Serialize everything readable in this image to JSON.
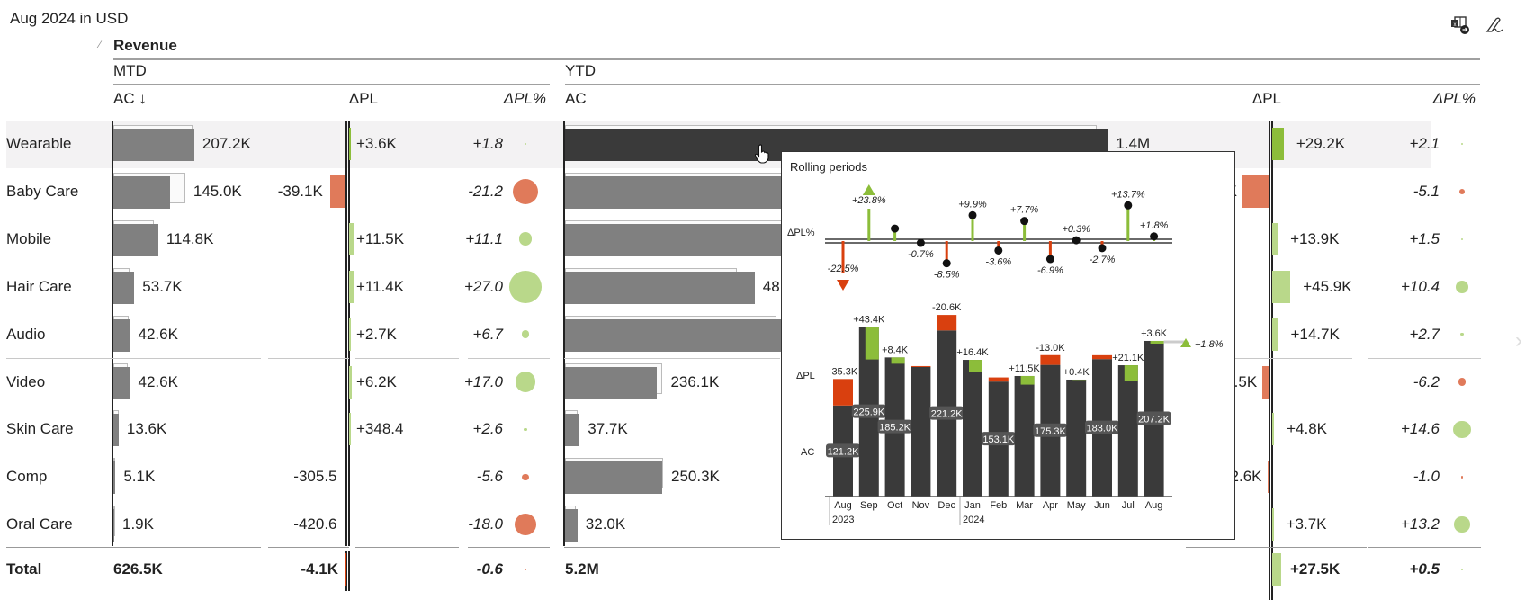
{
  "header": {
    "title": "Aug 2024 in USD",
    "measure": "Revenue",
    "mtd_label": "MTD",
    "ytd_label": "YTD",
    "col_ac_mtd": "AC ↓",
    "col_ac_ytd": "AC",
    "col_dpl": "ΔPL",
    "col_dplpct": "ΔPL%"
  },
  "toolbar": {
    "icons": [
      "export-excel-icon",
      "signature-icon"
    ]
  },
  "colors": {
    "ac_bar": "#808080",
    "ac_selected": "#3a3a3a",
    "positive": "#8cbd3a",
    "positive_light": "#b9d88a",
    "negative": "#e07a5a",
    "negative_strong": "#d9400f"
  },
  "rows": [
    {
      "name": "Wearable",
      "selected": true,
      "mtd": {
        "ac": 207.2,
        "ac_label": "207.2K",
        "dpl": 3.6,
        "dpl_label": "+3.6K",
        "pct": 1.8,
        "pct_label": "+1.8"
      },
      "ytd": {
        "ac": 1400,
        "ac_label": "1.4M",
        "dpl": 29.2,
        "dpl_label": "+29.2K",
        "pct": 2.1,
        "pct_label": "+2.1"
      }
    },
    {
      "name": "Baby Care",
      "mtd": {
        "ac": 145.0,
        "ac_label": "145.0K",
        "dpl": -39.1,
        "dpl_label": "-39.1K",
        "pct": -21.2,
        "pct_label": "-21.2"
      },
      "ytd": {
        "ac": 1230,
        "ac_label": "",
        "dpl": -66,
        "dpl_label": "K",
        "pct": -5.1,
        "pct_label": "-5.1"
      }
    },
    {
      "name": "Mobile",
      "mtd": {
        "ac": 114.8,
        "ac_label": "114.8K",
        "dpl": 11.5,
        "dpl_label": "+11.5K",
        "pct": 11.1,
        "pct_label": "+11.1"
      },
      "ytd": {
        "ac": 950,
        "ac_label": "",
        "dpl": 13.9,
        "dpl_label": "+13.9K",
        "pct": 1.5,
        "pct_label": "+1.5"
      }
    },
    {
      "name": "Hair Care",
      "mtd": {
        "ac": 53.7,
        "ac_label": "53.7K",
        "dpl": 11.4,
        "dpl_label": "+11.4K",
        "pct": 27.0,
        "pct_label": "+27.0"
      },
      "ytd": {
        "ac": 489,
        "ac_label": "48",
        "dpl": 45.9,
        "dpl_label": "+45.9K",
        "pct": 10.4,
        "pct_label": "+10.4"
      }
    },
    {
      "name": "Audio",
      "mtd": {
        "ac": 42.6,
        "ac_label": "42.6K",
        "dpl": 2.7,
        "dpl_label": "+2.7K",
        "pct": 6.7,
        "pct_label": "+6.7"
      },
      "ytd": {
        "ac": 560,
        "ac_label": "",
        "dpl": 14.7,
        "dpl_label": "+14.7K",
        "pct": 2.7,
        "pct_label": "+2.7"
      }
    },
    {
      "name": "Video",
      "mtd": {
        "ac": 42.6,
        "ac_label": "42.6K",
        "dpl": 6.2,
        "dpl_label": "+6.2K",
        "pct": 17.0,
        "pct_label": "+17.0"
      },
      "ytd": {
        "ac": 236.1,
        "ac_label": "236.1K",
        "dpl": -15.5,
        "dpl_label": ".5K",
        "pct": -6.2,
        "pct_label": "-6.2"
      }
    },
    {
      "name": "Skin Care",
      "mtd": {
        "ac": 13.6,
        "ac_label": "13.6K",
        "dpl": 0.3484,
        "dpl_label": "+348.4",
        "pct": 2.6,
        "pct_label": "+2.6"
      },
      "ytd": {
        "ac": 37.7,
        "ac_label": "37.7K",
        "dpl": 4.8,
        "dpl_label": "+4.8K",
        "pct": 14.6,
        "pct_label": "+14.6"
      }
    },
    {
      "name": "Comp",
      "mtd": {
        "ac": 5.1,
        "ac_label": "5.1K",
        "dpl": -0.3055,
        "dpl_label": "-305.5",
        "pct": -5.6,
        "pct_label": "-5.6"
      },
      "ytd": {
        "ac": 250.3,
        "ac_label": "250.3K",
        "dpl": -2.6,
        "dpl_label": "2.6K",
        "pct": -1.0,
        "pct_label": "-1.0"
      }
    },
    {
      "name": "Oral Care",
      "mtd": {
        "ac": 1.9,
        "ac_label": "1.9K",
        "dpl": -0.4206,
        "dpl_label": "-420.6",
        "pct": -18.0,
        "pct_label": "-18.0"
      },
      "ytd": {
        "ac": 32.0,
        "ac_label": "32.0K",
        "dpl": 3.7,
        "dpl_label": "+3.7K",
        "pct": 13.2,
        "pct_label": "+13.2"
      }
    }
  ],
  "total": {
    "name": "Total",
    "mtd": {
      "ac_label": "626.5K",
      "dpl": -4.1,
      "dpl_label": "-4.1K",
      "pct": -0.6,
      "pct_label": "-0.6"
    },
    "ytd": {
      "ac_label": "5.2M",
      "dpl": 27.5,
      "dpl_label": "+27.5K",
      "pct": 0.5,
      "pct_label": "+0.5"
    }
  },
  "popup": {
    "title": "Rolling periods",
    "label_dplpct": "ΔPL%",
    "label_dpl": "ΔPL",
    "label_ac": "AC",
    "end_label": "+1.8%",
    "years": [
      "2023",
      "2024"
    ],
    "months": [
      "Aug",
      "Sep",
      "Oct",
      "Nov",
      "Dec",
      "Jan",
      "Feb",
      "Mar",
      "Apr",
      "May",
      "Jun",
      "Jul",
      "Aug"
    ],
    "ac": [
      121.2,
      225.9,
      185.2,
      172.5,
      221.2,
      182.0,
      153.1,
      160.5,
      175.3,
      155.7,
      183.0,
      174.8,
      207.2
    ],
    "ac_labels": [
      "121.2K",
      "225.9K",
      "185.2K",
      "",
      "221.2K",
      "",
      "153.1K",
      "",
      "175.3K",
      "",
      "183.0K",
      "",
      "207.2K"
    ],
    "dpl": [
      -35.3,
      43.4,
      8.4,
      -1.2,
      -20.6,
      16.4,
      -5.5,
      11.5,
      -13.0,
      0.4,
      -5.2,
      21.1,
      3.6
    ],
    "dpl_labels": [
      "-35.3K",
      "+43.4K",
      "+8.4K",
      "",
      "-20.6K",
      "+16.4K",
      "",
      "+11.5K",
      "-13.0K",
      "+0.4K",
      "",
      "+21.1K",
      "+3.6K"
    ],
    "dplpct": [
      -22.5,
      23.8,
      4.8,
      -0.7,
      -8.5,
      9.9,
      -3.6,
      7.7,
      -6.9,
      0.3,
      -2.7,
      13.7,
      1.8
    ],
    "dplpct_labels": [
      "-22.5%",
      "+23.8%",
      "",
      "-0.7%",
      "-8.5%",
      "+9.9%",
      "-3.6%",
      "+7.7%",
      "-6.9%",
      "+0.3%",
      "-2.7%",
      "+13.7%",
      "+1.8%"
    ]
  }
}
